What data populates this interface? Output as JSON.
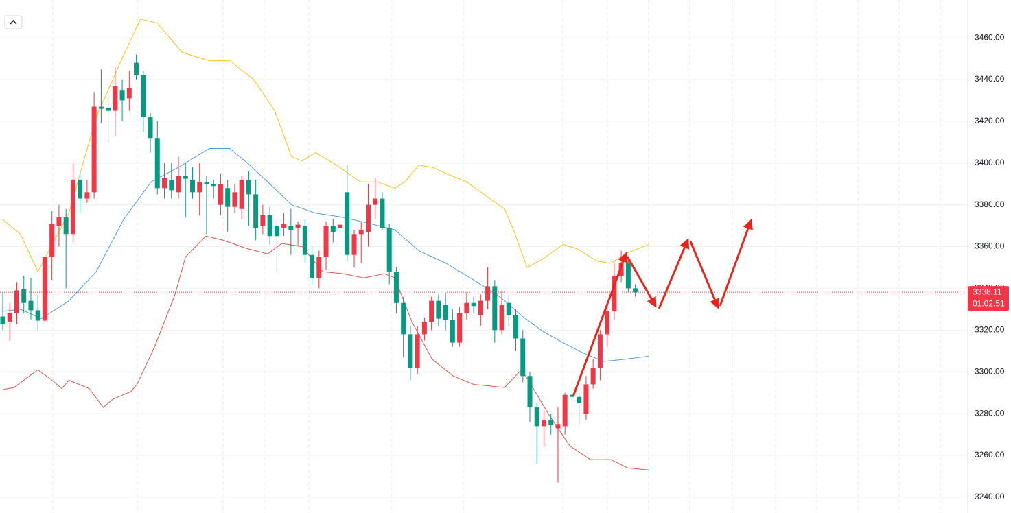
{
  "chart_data": {
    "type": "candlestick",
    "up_color": "#f23645",
    "down_color": "#089981",
    "open": [
      3326.5,
      3324,
      3328,
      3339.5,
      3334,
      3329.5,
      3324.5,
      3355,
      3370,
      3374,
      3366,
      3392,
      3383,
      3386,
      3427,
      3426.5,
      3425,
      3435,
      3431,
      3448,
      3442,
      3422,
      3412,
      3388,
      3392,
      3386,
      3394,
      3392,
      3386,
      3391,
      3390,
      3380,
      3388,
      3379,
      3378,
      3392,
      3385,
      3370,
      3375,
      3370,
      3369,
      3370,
      3369,
      3370,
      3356,
      3345,
      3355,
      3370,
      3369,
      3386,
      3356,
      3366,
      3367,
      3380,
      3383,
      3369,
      3348,
      3333,
      3318,
      3302,
      3318,
      3324,
      3334,
      3332,
      3325,
      3314,
      3328,
      3333,
      3327,
      3334,
      3341,
      3320,
      3333,
      3327,
      3316,
      3298,
      3283,
      3274,
      3277,
      3273,
      3274,
      3289,
      3288,
      3280,
      3294,
      3302,
      3318,
      3329,
      3346,
      3352,
      3340
    ],
    "high": [
      3338,
      3333,
      3343,
      3346,
      3345,
      3337,
      3356,
      3377,
      3380,
      3378,
      3400,
      3395,
      3392,
      3434,
      3445,
      3432,
      3446,
      3440,
      3444,
      3452,
      3444,
      3424,
      3420,
      3400,
      3400,
      3403,
      3400,
      3398,
      3400,
      3394,
      3392,
      3395,
      3392,
      3390,
      3394,
      3396,
      3392,
      3380,
      3379,
      3373,
      3376,
      3378,
      3372,
      3373,
      3360,
      3358,
      3372,
      3373,
      3374,
      3399,
      3368,
      3372,
      3390,
      3393,
      3386,
      3371,
      3350,
      3336,
      3322,
      3322,
      3326,
      3336,
      3337,
      3338,
      3330,
      3331,
      3338,
      3336,
      3337,
      3350,
      3344,
      3339,
      3337,
      3330,
      3320,
      3300,
      3285,
      3281,
      3280,
      3283,
      3290,
      3295,
      3290,
      3298,
      3306,
      3320,
      3331,
      3352,
      3358,
      3355,
      3342
    ],
    "low": [
      3320,
      3315,
      3323,
      3328,
      3325,
      3320,
      3323,
      3344,
      3360,
      3340,
      3362,
      3376,
      3381,
      3383,
      3419,
      3410,
      3413,
      3420,
      3425,
      3440,
      3415,
      3405,
      3385,
      3383,
      3383,
      3383,
      3374,
      3383,
      3375,
      3366,
      3383,
      3375,
      3367,
      3376,
      3373,
      3370,
      3363,
      3366,
      3361,
      3348,
      3365,
      3356,
      3360,
      3352,
      3342,
      3340,
      3349,
      3362,
      3362,
      3353,
      3350,
      3352,
      3360,
      3373,
      3368,
      3342,
      3328,
      3307,
      3296,
      3299,
      3315,
      3320,
      3322,
      3320,
      3312,
      3312,
      3325,
      3328,
      3322,
      3330,
      3314,
      3318,
      3322,
      3310,
      3295,
      3276,
      3256,
      3264,
      3270,
      3247,
      3270,
      3279,
      3275,
      3277,
      3292,
      3296,
      3312,
      3325,
      3343,
      3338,
      3336
    ],
    "close": [
      3323,
      3328,
      3339,
      3333,
      3329.5,
      3324.5,
      3355,
      3371,
      3374,
      3366,
      3392,
      3383,
      3386,
      3427,
      3426,
      3425,
      3437,
      3430,
      3436,
      3442,
      3422,
      3412,
      3388,
      3393,
      3387,
      3394,
      3392.5,
      3386,
      3391,
      3390,
      3389,
      3390,
      3379,
      3386,
      3392,
      3385,
      3369,
      3375,
      3365,
      3365,
      3371,
      3368,
      3370.5,
      3356,
      3345,
      3355,
      3370,
      3367,
      3370.5,
      3356,
      3366,
      3368,
      3380,
      3383,
      3369,
      3348,
      3333,
      3318,
      3302,
      3318,
      3324,
      3334,
      3325.5,
      3325,
      3314,
      3328,
      3333,
      3331.5,
      3334,
      3341,
      3320,
      3332,
      3327,
      3316,
      3298,
      3283,
      3274,
      3277,
      3274.5,
      3275,
      3289,
      3288,
      3285,
      3294,
      3302,
      3318,
      3329,
      3346,
      3352,
      3340,
      3338.11
    ],
    "overlays": [
      {
        "color": "#f5c518",
        "x": [
          0,
          2.5,
          5,
          9.4,
          13.3,
          16.7,
          19.6,
          22,
          25.5,
          29.4,
          32.3,
          35.7,
          38.7,
          41.1,
          42.6,
          44.5,
          47.5,
          50.9,
          53.3,
          55.8,
          57.2,
          59.2,
          61.1,
          63.1,
          66,
          68.9,
          71.4,
          72.9,
          74.6,
          76.8,
          79.7,
          81.7,
          84.6,
          86.5,
          88.9,
          91.9
        ],
        "values": [
          3373,
          3366,
          3348,
          3376,
          3422,
          3448,
          3469,
          3467,
          3453,
          3449,
          3449,
          3440,
          3425,
          3403,
          3401,
          3405,
          3399,
          3391,
          3391,
          3388,
          3391,
          3399,
          3398,
          3395,
          3391,
          3384,
          3378,
          3366,
          3350,
          3354,
          3361,
          3359,
          3353,
          3352,
          3357,
          3361
        ]
      },
      {
        "color": "#4a9fd8",
        "x": [
          0,
          2.5,
          5.5,
          9.4,
          13.3,
          17.2,
          21.1,
          25,
          29.4,
          32.3,
          34.8,
          37.7,
          41.1,
          44.5,
          48.4,
          52.3,
          55.8,
          59.2,
          63.1,
          67,
          70.9,
          73.8,
          76.8,
          79.7,
          82.6,
          85.5,
          88.5,
          91.9
        ],
        "values": [
          3329,
          3330,
          3325.5,
          3334,
          3348,
          3373,
          3391,
          3398,
          3407,
          3407,
          3400,
          3391,
          3380,
          3376,
          3374,
          3371,
          3368,
          3358,
          3352,
          3344,
          3335.5,
          3327,
          3319.5,
          3314,
          3309,
          3305,
          3306,
          3307.5
        ]
      },
      {
        "color": "#e0554d",
        "x": [
          0,
          1.6,
          5,
          7,
          8.4,
          9.4,
          12.3,
          14.3,
          15.7,
          18.2,
          19.1,
          21.6,
          24.5,
          26,
          28.9,
          31.4,
          34.8,
          37.7,
          39.7,
          42.6,
          45.5,
          48.4,
          51.4,
          54.3,
          55.8,
          58.2,
          61.1,
          64.1,
          67,
          69.9,
          71.4,
          73.8,
          74.8,
          77.7,
          80.7,
          83.6,
          86.5,
          88.9,
          91.9
        ],
        "values": [
          3291.5,
          3292.5,
          3301,
          3296,
          3292,
          3296,
          3292,
          3283,
          3287,
          3290.5,
          3294,
          3312,
          3337,
          3355,
          3365,
          3363,
          3359,
          3356.5,
          3361.5,
          3360,
          3348,
          3347,
          3345,
          3347,
          3345,
          3324,
          3306,
          3298,
          3294,
          3293,
          3292.5,
          3301,
          3296,
          3279.5,
          3264.5,
          3258,
          3258,
          3254,
          3253
        ]
      }
    ],
    "last_price": 3338.11,
    "countdown": "01:02:51",
    "ylim": [
      3232.4,
      3478.1
    ],
    "yticks": [
      {
        "value": 3240,
        "label": "3240.00"
      },
      {
        "value": 3260,
        "label": "3260.00"
      },
      {
        "value": 3280,
        "label": "3280.00"
      },
      {
        "value": 3300,
        "label": "3300.00"
      },
      {
        "value": 3320,
        "label": "3320.00"
      },
      {
        "value": 3340,
        "label": "3340.00"
      },
      {
        "value": 3360,
        "label": "3360.00"
      },
      {
        "value": 3380,
        "label": "3380.00"
      },
      {
        "value": 3400,
        "label": "3400.00"
      },
      {
        "value": 3420,
        "label": "3420.00"
      },
      {
        "value": 3440,
        "label": "3440.00"
      },
      {
        "value": 3460,
        "label": "3460.00"
      }
    ],
    "grid": true
  }
}
